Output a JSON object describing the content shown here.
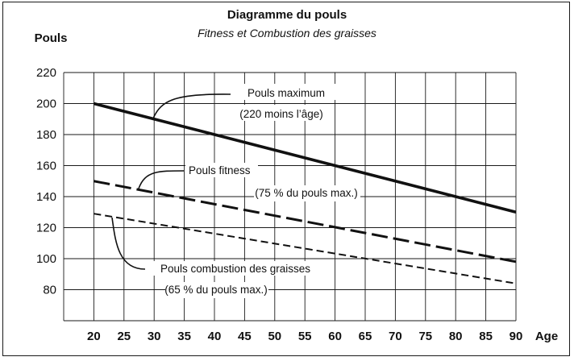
{
  "chart_data": {
    "type": "line",
    "title": "Diagramme du pouls",
    "subtitle": "Fitness  et  Combustion des graisses",
    "ylabel": "Pouls",
    "xlabel": "Age",
    "xlim": [
      15,
      90
    ],
    "ylim": [
      60,
      220
    ],
    "x_ticks": [
      20,
      25,
      30,
      35,
      40,
      45,
      50,
      55,
      60,
      65,
      70,
      75,
      80,
      85,
      90
    ],
    "y_ticks": [
      220,
      200,
      180,
      160,
      140,
      120,
      100,
      80
    ],
    "grid": true,
    "series": [
      {
        "name": "Pouls maximum",
        "note": "(220  moins l’âge)",
        "style": "solid",
        "x": [
          20,
          90
        ],
        "y": [
          200,
          130
        ]
      },
      {
        "name": "Pouls fitness",
        "note": "(75 % du pouls max.)",
        "style": "long-dash",
        "x": [
          20,
          90
        ],
        "y": [
          150,
          98
        ]
      },
      {
        "name": "Pouls combustion des graisses",
        "note": "(65 % du pouls max.)",
        "style": "short-dash",
        "x": [
          20,
          90
        ],
        "y": [
          129,
          84
        ]
      }
    ]
  }
}
